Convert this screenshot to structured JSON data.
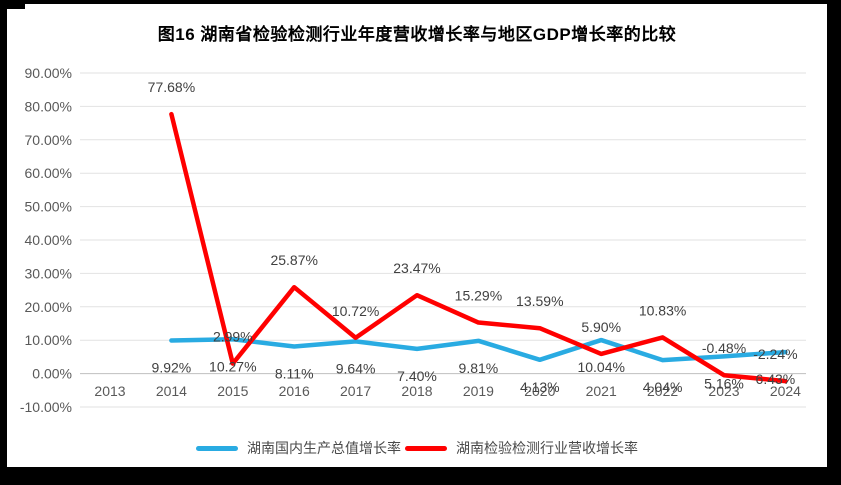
{
  "title": "图16  湖南省检验检测行业年度营收增长率与地区GDP增长率的比较",
  "legend": [
    {
      "label": "湖南国内生产总值增长率",
      "color": "#29ABE2"
    },
    {
      "label": "湖南检验检测行业营收增长率",
      "color": "#FF0000"
    }
  ],
  "colors": {
    "grid": "#E2E2E2",
    "axis_zero_line": "#BFBFBF",
    "tick_text": "#595959",
    "data_label_text": "#404040",
    "frame": "#000000"
  },
  "chart_data": {
    "type": "line",
    "title": "图16  湖南省检验检测行业年度营收增长率与地区GDP增长率的比较",
    "xlabel": "",
    "ylabel": "",
    "categories": [
      "2013",
      "2014",
      "2015",
      "2016",
      "2017",
      "2018",
      "2019",
      "2020",
      "2021",
      "2022",
      "2023",
      "2024"
    ],
    "series": [
      {
        "id": "gdp-growth",
        "name": "湖南国内生产总值增长率",
        "color": "#29ABE2",
        "label_position": "below",
        "values": [
          null,
          9.92,
          10.27,
          8.11,
          9.64,
          7.4,
          9.81,
          4.13,
          10.04,
          4.04,
          5.16,
          6.43
        ],
        "labels": [
          null,
          "9.92%",
          "10.27%",
          "8.11%",
          "9.64%",
          "7.40%",
          "9.81%",
          "4.13%",
          "10.04%",
          "4.04%",
          "5.16%",
          "6.43%"
        ]
      },
      {
        "id": "testing-revenue-growth",
        "name": "湖南检验检测行业营收增长率",
        "color": "#FF0000",
        "label_position": "above",
        "values": [
          null,
          77.68,
          2.99,
          25.87,
          10.72,
          23.47,
          15.29,
          13.59,
          5.9,
          10.83,
          -0.48,
          -2.24
        ],
        "labels": [
          null,
          "77.68%",
          "2.99%",
          "25.87%",
          "10.72%",
          "23.47%",
          "15.29%",
          "13.59%",
          "5.90%",
          "10.83%",
          "-0.48%",
          "-2.24%"
        ]
      }
    ],
    "ylim": [
      -10,
      90
    ],
    "ytick_step": 10,
    "ytick_labels": [
      "90.00%",
      "80.00%",
      "70.00%",
      "60.00%",
      "50.00%",
      "40.00%",
      "30.00%",
      "20.00%",
      "10.00%",
      "0.00%",
      "-10.00%"
    ],
    "grid": true,
    "legend_position": "bottom"
  }
}
